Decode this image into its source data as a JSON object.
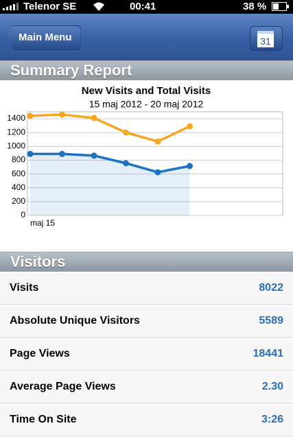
{
  "status_bar": {
    "carrier": "Telenor SE",
    "time": "00:41",
    "battery": "38 %"
  },
  "nav": {
    "back_button": "Main Menu",
    "calendar_day": "31"
  },
  "summary": {
    "title": "Summary Report"
  },
  "chart_data": {
    "type": "line",
    "title": "New Visits and Total Visits",
    "subtitle": "15 maj 2012 - 20 maj 2012",
    "categories": [
      "maj 15",
      null,
      null,
      null,
      null,
      null
    ],
    "series": [
      {
        "name": "Total Visits",
        "color": "#f5a623",
        "values": [
          1440,
          1460,
          1410,
          1200,
          1070,
          1290
        ]
      },
      {
        "name": "New Visits",
        "color": "#1a73c4",
        "values": [
          890,
          890,
          865,
          755,
          625,
          715
        ],
        "area": true
      }
    ],
    "ylim": [
      0,
      1500
    ],
    "yticks": [
      0,
      200,
      400,
      600,
      800,
      1000,
      1200,
      1400
    ],
    "grid": true
  },
  "visitors": {
    "title": "Visitors",
    "rows": [
      [
        "Visits",
        "8022"
      ],
      [
        "Absolute Unique Visitors",
        "5589"
      ],
      [
        "Page Views",
        "18441"
      ],
      [
        "Average Page Views",
        "2.30"
      ],
      [
        "Time On Site",
        "3:26"
      ]
    ]
  }
}
